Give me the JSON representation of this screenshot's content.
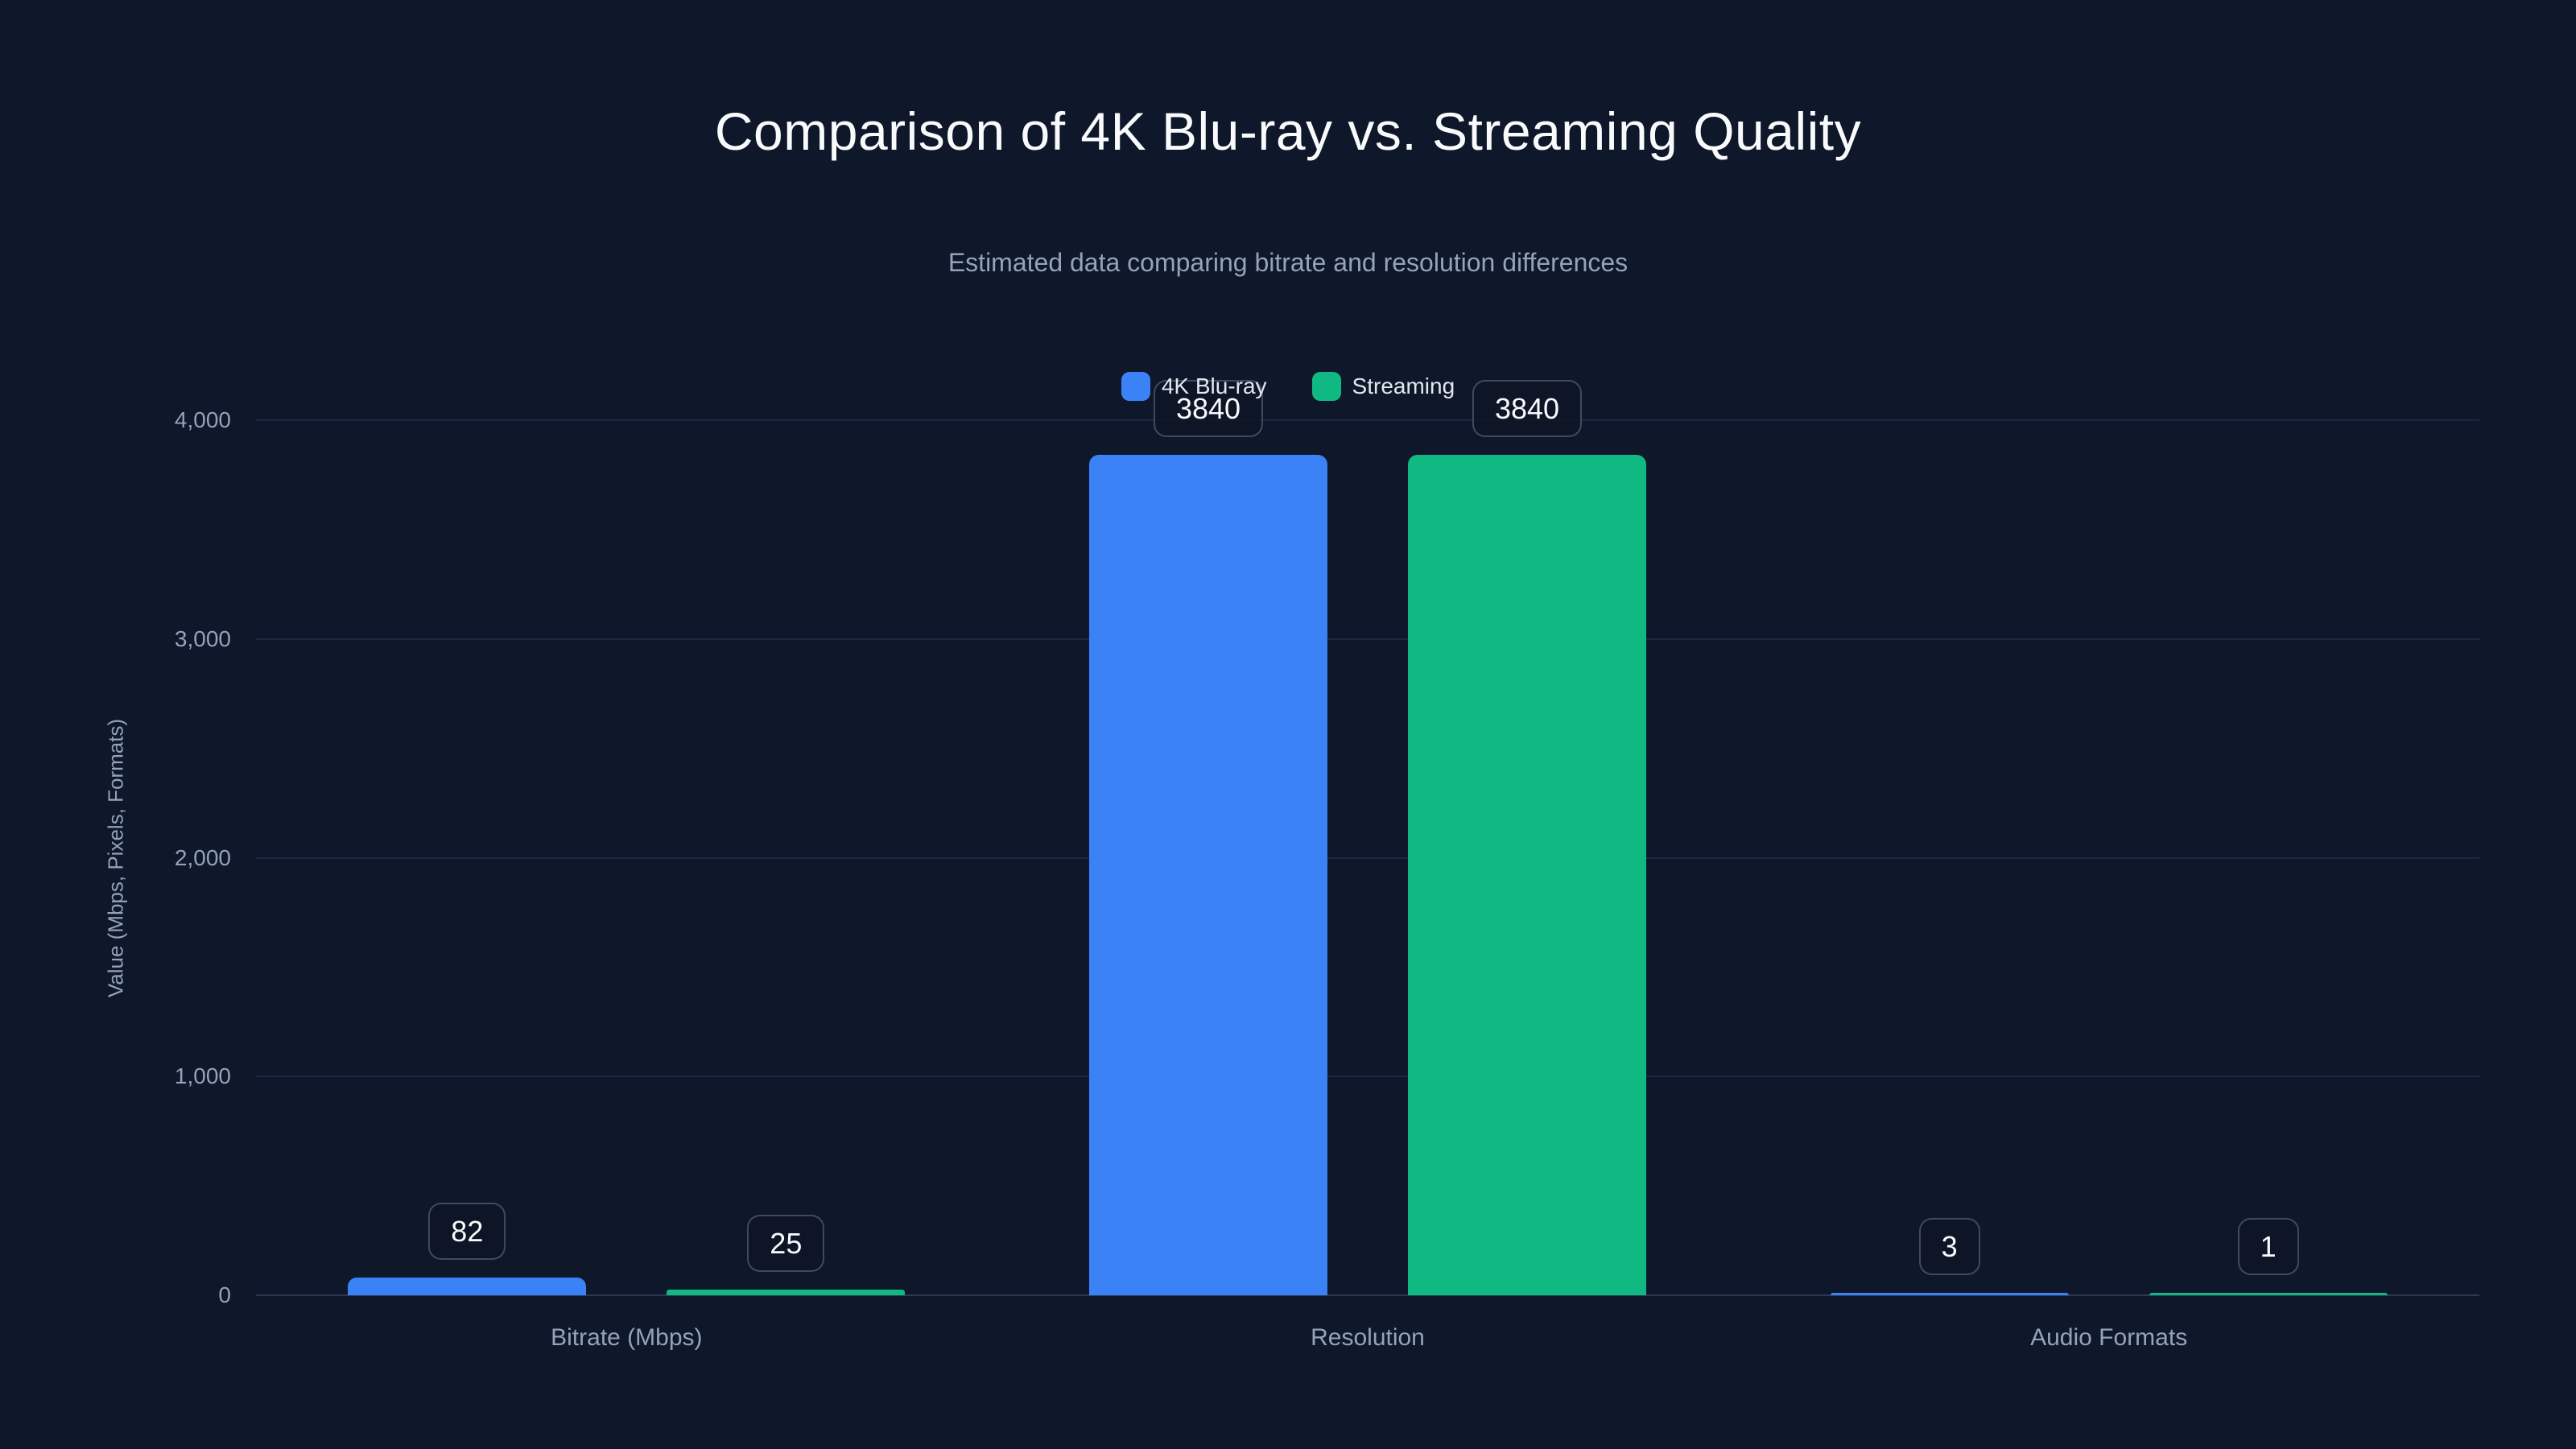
{
  "window": {
    "background": "#0f172a"
  },
  "header": {
    "title": "Comparison of 4K Blu-ray vs. Streaming Quality",
    "subtitle": "Estimated data comparing bitrate and resolution differences"
  },
  "legend": {
    "position": "top-center",
    "items": [
      {
        "label": "4K Blu-ray",
        "color": "#3b82f6"
      },
      {
        "label": "Streaming",
        "color": "#10b981"
      }
    ]
  },
  "y_axis": {
    "title": "Value (Mbps, Pixels, Formats)",
    "tick_labels": [
      "0",
      "1,000",
      "2,000",
      "3,000",
      "4,000"
    ],
    "tick_values": [
      0,
      1000,
      2000,
      3000,
      4000
    ]
  },
  "chart_data": {
    "type": "bar",
    "title": "Comparison of 4K Blu-ray vs. Streaming Quality",
    "subtitle": "Estimated data comparing bitrate and resolution differences",
    "categories": [
      "Bitrate (Mbps)",
      "Resolution",
      "Audio Formats"
    ],
    "series": [
      {
        "name": "4K Blu-ray",
        "color": "#3b82f6",
        "values": [
          82,
          3840,
          3
        ]
      },
      {
        "name": "Streaming",
        "color": "#10b981",
        "values": [
          25,
          3840,
          1
        ]
      }
    ],
    "value_labels": [
      [
        "82",
        "25"
      ],
      [
        "3840",
        "3840"
      ],
      [
        "3",
        "1"
      ]
    ],
    "xlabel": "",
    "ylabel": "Value (Mbps, Pixels, Formats)",
    "ylim": [
      0,
      4000
    ],
    "yticks": [
      "0",
      "1,000",
      "2,000",
      "3,000",
      "4,000"
    ],
    "grid": true,
    "legend_position": "top-center",
    "value_badges_visible": true
  },
  "colors": {
    "background": "#0f172a",
    "title_text": "#f8fafc",
    "muted_text": "#94a3b8",
    "legend_text": "#e2e8f0",
    "gridline": "#1d2940",
    "axis_baseline": "#2c3852",
    "badge_border": "rgba(148,163,184,0.38)",
    "badge_background": "rgba(13,21,38,0.82)",
    "badge_text": "#f8fafc",
    "series_blue": "#3b82f6",
    "series_green": "#10b981"
  }
}
